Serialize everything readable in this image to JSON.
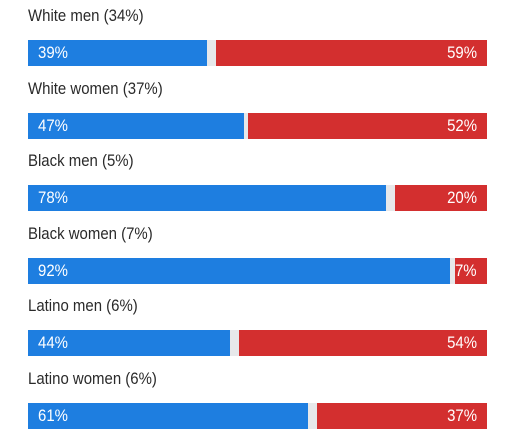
{
  "chart_data": {
    "type": "bar",
    "orientation": "horizontal",
    "stacked": true,
    "categories": [
      "White men (34%)",
      "White women (37%)",
      "Black men (5%)",
      "Black women (7%)",
      "Latino men (6%)",
      "Latino women (6%)"
    ],
    "series": [
      {
        "color": "#1e7ee0",
        "values": [
          39,
          47,
          78,
          92,
          44,
          61
        ],
        "labels": [
          "39%",
          "47%",
          "78%",
          "92%",
          "44%",
          "61%"
        ]
      },
      {
        "color": "#d32f2f",
        "values": [
          59,
          52,
          20,
          7,
          54,
          37
        ],
        "labels": [
          "59%",
          "52%",
          "20%",
          "7%",
          "54%",
          "37%"
        ]
      }
    ],
    "xlim": [
      0,
      100
    ],
    "grid": false,
    "legend": "none"
  },
  "colors": {
    "track": "#e7e8ea",
    "label": "#2a2a2a",
    "value_text": "#ffffff"
  }
}
